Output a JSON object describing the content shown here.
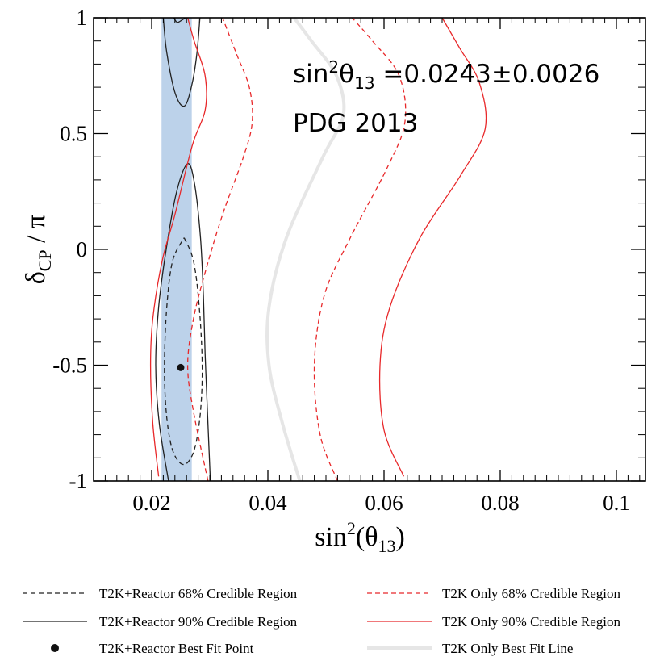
{
  "chart_data": {
    "type": "line",
    "xlabel": {
      "base": "sin",
      "sup": "2",
      "rest": "(θ",
      "sub": "13",
      "end": ")"
    },
    "ylabel": {
      "base": "δ",
      "sub": "CP",
      "rest": " / π"
    },
    "xlim": [
      0.01,
      0.105
    ],
    "ylim": [
      -1,
      1
    ],
    "x_ticks": [
      0.02,
      0.04,
      0.06,
      0.08,
      0.1
    ],
    "x_tick_labels": [
      "0.02",
      "0.04",
      "0.06",
      "0.08",
      "0.1"
    ],
    "y_ticks": [
      1,
      0.5,
      0,
      -0.5,
      -1
    ],
    "y_tick_labels": [
      "1",
      "0.5",
      "0",
      "-0.5",
      "-1"
    ],
    "annotations": {
      "line1": {
        "base": "sin",
        "sup": "2",
        "theta": "θ",
        "sub": "13",
        "rest": " =0.0243±0.0026"
      },
      "line2": "PDG 2013"
    },
    "reactor_band": {
      "center": 0.0243,
      "sigma": 0.0026,
      "color": "#bcd2ea"
    },
    "series": [
      {
        "name": "T2K+Reactor 68% Credible Region",
        "style": "dashed",
        "color": "#222222",
        "points": [
          [
            0.0256,
            0.05
          ],
          [
            0.0272,
            -0.05
          ],
          [
            0.0282,
            -0.25
          ],
          [
            0.0287,
            -0.5
          ],
          [
            0.0284,
            -0.7
          ],
          [
            0.0275,
            -0.85
          ],
          [
            0.0262,
            -0.92
          ],
          [
            0.0248,
            -0.92
          ],
          [
            0.0234,
            -0.85
          ],
          [
            0.0225,
            -0.7
          ],
          [
            0.0222,
            -0.5
          ],
          [
            0.0226,
            -0.25
          ],
          [
            0.0236,
            -0.05
          ],
          [
            0.0256,
            0.05
          ]
        ]
      },
      {
        "name": "T2K+Reactor 90% Credible Region",
        "style": "solid",
        "color": "#222222",
        "points": [
          [
            0.0229,
            -1.0
          ],
          [
            0.0213,
            -0.75
          ],
          [
            0.0207,
            -0.5
          ],
          [
            0.0212,
            -0.25
          ],
          [
            0.0225,
            0.0
          ],
          [
            0.0243,
            0.25
          ],
          [
            0.0262,
            0.37
          ],
          [
            0.0274,
            0.28
          ],
          [
            0.0284,
            0.05
          ],
          [
            0.0289,
            -0.2
          ],
          [
            0.0292,
            -0.45
          ],
          [
            0.0296,
            -0.7
          ],
          [
            0.0301,
            -1.0
          ]
        ]
      },
      {
        "name": "T2K+Reactor 90% Credible Region (upper)",
        "style": "solid",
        "color": "#222222",
        "points": [
          [
            0.022,
            1.0
          ],
          [
            0.0226,
            0.85
          ],
          [
            0.0241,
            0.67
          ],
          [
            0.0257,
            0.62
          ],
          [
            0.027,
            0.72
          ],
          [
            0.0278,
            0.85
          ],
          [
            0.0283,
            1.0
          ]
        ]
      },
      {
        "name": "T2K+Reactor 90% Credible Region (top)",
        "style": "solid",
        "color": "#222222",
        "points": [
          [
            0.0238,
            1.0
          ],
          [
            0.0244,
            0.98
          ],
          [
            0.0252,
            0.99
          ],
          [
            0.0258,
            1.0
          ]
        ]
      },
      {
        "name": "T2K Only 68% Credible Region",
        "style": "dashed",
        "color": "#e8282a",
        "points": [
          [
            0.0297,
            -1.0
          ],
          [
            0.0272,
            -0.7
          ],
          [
            0.0262,
            -0.5
          ],
          [
            0.0272,
            -0.3
          ],
          [
            0.0292,
            -0.1
          ],
          [
            0.0322,
            0.15
          ],
          [
            0.0358,
            0.4
          ],
          [
            0.0373,
            0.55
          ],
          [
            0.0368,
            0.7
          ],
          [
            0.0345,
            0.85
          ],
          [
            0.0322,
            1.0
          ]
        ]
      },
      {
        "name": "T2K Only 68% Credible Region (right)",
        "style": "dashed",
        "color": "#e8282a",
        "points": [
          [
            0.052,
            -1.0
          ],
          [
            0.049,
            -0.8
          ],
          [
            0.048,
            -0.5
          ],
          [
            0.0497,
            -0.2
          ],
          [
            0.0542,
            0.05
          ],
          [
            0.0605,
            0.35
          ],
          [
            0.0636,
            0.55
          ],
          [
            0.0626,
            0.75
          ],
          [
            0.058,
            0.9
          ],
          [
            0.0545,
            1.0
          ]
        ]
      },
      {
        "name": "T2K Only 90% Credible Region",
        "style": "solid",
        "color": "#e8282a",
        "points": [
          [
            0.0212,
            -0.98
          ],
          [
            0.0202,
            -0.75
          ],
          [
            0.0198,
            -0.5
          ],
          [
            0.0202,
            -0.3
          ],
          [
            0.0218,
            -0.05
          ],
          [
            0.024,
            0.15
          ],
          [
            0.027,
            0.45
          ],
          [
            0.0292,
            0.6
          ],
          [
            0.0292,
            0.75
          ],
          [
            0.0273,
            0.9
          ],
          [
            0.0262,
            1.0
          ]
        ]
      },
      {
        "name": "T2K Only 90% Credible Region (right)",
        "style": "solid",
        "color": "#e8282a",
        "points": [
          [
            0.0634,
            -0.98
          ],
          [
            0.06,
            -0.78
          ],
          [
            0.0593,
            -0.5
          ],
          [
            0.061,
            -0.25
          ],
          [
            0.0662,
            0.05
          ],
          [
            0.0732,
            0.32
          ],
          [
            0.0774,
            0.52
          ],
          [
            0.0764,
            0.72
          ],
          [
            0.073,
            0.87
          ],
          [
            0.07,
            1.0
          ]
        ]
      },
      {
        "name": "T2K Only Best Fit Line",
        "style": "solid",
        "color": "#e6e6e6",
        "points": [
          [
            0.0455,
            -1.0
          ],
          [
            0.0425,
            -0.75
          ],
          [
            0.0402,
            -0.5
          ],
          [
            0.0402,
            -0.25
          ],
          [
            0.0432,
            0.05
          ],
          [
            0.0495,
            0.4
          ],
          [
            0.053,
            0.58
          ],
          [
            0.0518,
            0.75
          ],
          [
            0.0475,
            0.9
          ],
          [
            0.0445,
            1.0
          ]
        ]
      }
    ],
    "best_fit_point": {
      "name": "T2K+Reactor Best Fit Point",
      "x": 0.025,
      "y": -0.51,
      "color": "#111111"
    },
    "legend": {
      "placement": "bottom",
      "items": [
        {
          "label": "T2K+Reactor 68% Credible Region",
          "style": "dashed",
          "color": "#222222"
        },
        {
          "label": "T2K Only 68% Credible Region",
          "style": "dashed",
          "color": "#e8282a"
        },
        {
          "label": "T2K+Reactor 90% Credible Region",
          "style": "solid",
          "color": "#222222"
        },
        {
          "label": "T2K Only 90% Credible Region",
          "style": "solid",
          "color": "#e8282a"
        },
        {
          "label": "T2K+Reactor Best Fit Point",
          "style": "point",
          "color": "#111111"
        },
        {
          "label": "T2K Only Best Fit Line",
          "style": "thick",
          "color": "#e6e6e6"
        }
      ]
    },
    "grid": false
  }
}
